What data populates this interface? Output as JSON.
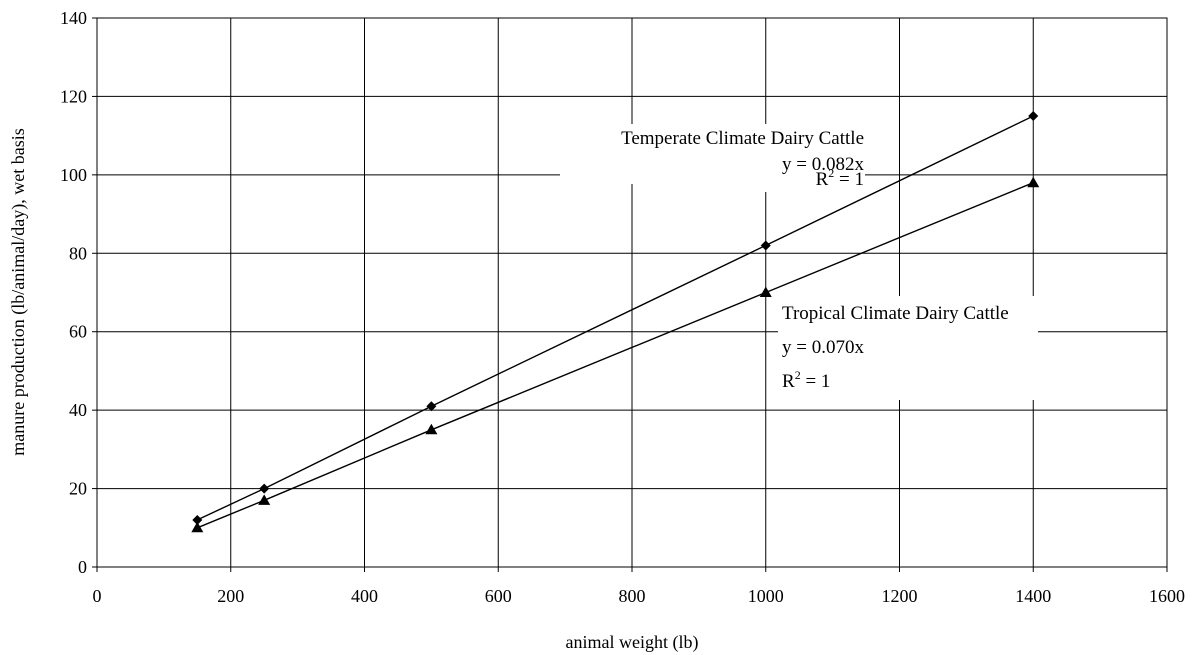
{
  "chart_data": {
    "type": "scatter",
    "xlabel": "animal weight (lb)",
    "ylabel": "manure production (lb/animal/day), wet basis",
    "xlim": [
      0,
      1600
    ],
    "ylim": [
      0,
      140
    ],
    "x_ticks": [
      0,
      200,
      400,
      600,
      800,
      1000,
      1200,
      1400,
      1600
    ],
    "y_ticks": [
      0,
      20,
      40,
      60,
      80,
      100,
      120,
      140
    ],
    "grid": true,
    "legend": "none",
    "series": [
      {
        "name": "Temperate Climate Dairy Cattle",
        "marker": "diamond",
        "color": "#000000",
        "x": [
          150,
          250,
          500,
          1000,
          1400
        ],
        "y": [
          12,
          20,
          41,
          82,
          115
        ],
        "trendline": {
          "slope": 0.082
        }
      },
      {
        "name": "Tropical Climate Dairy Cattle",
        "marker": "triangle",
        "color": "#000000",
        "x": [
          150,
          250,
          500,
          1000,
          1400
        ],
        "y": [
          10,
          17,
          35,
          70,
          98
        ],
        "trendline": {
          "slope": 0.07
        }
      }
    ],
    "annotations": [
      {
        "series": "Temperate Climate Dairy Cattle",
        "title": "Temperate Climate Dairy Cattle",
        "equation": "y = 0.082x",
        "r2_base": "R",
        "r2_sup": "2",
        "r2_val": " = 1"
      },
      {
        "series": "Tropical Climate Dairy Cattle",
        "title": "Tropical Climate Dairy Cattle",
        "equation": "y = 0.070x",
        "r2_base": "R",
        "r2_sup": "2",
        "r2_val": " = 1"
      }
    ]
  }
}
